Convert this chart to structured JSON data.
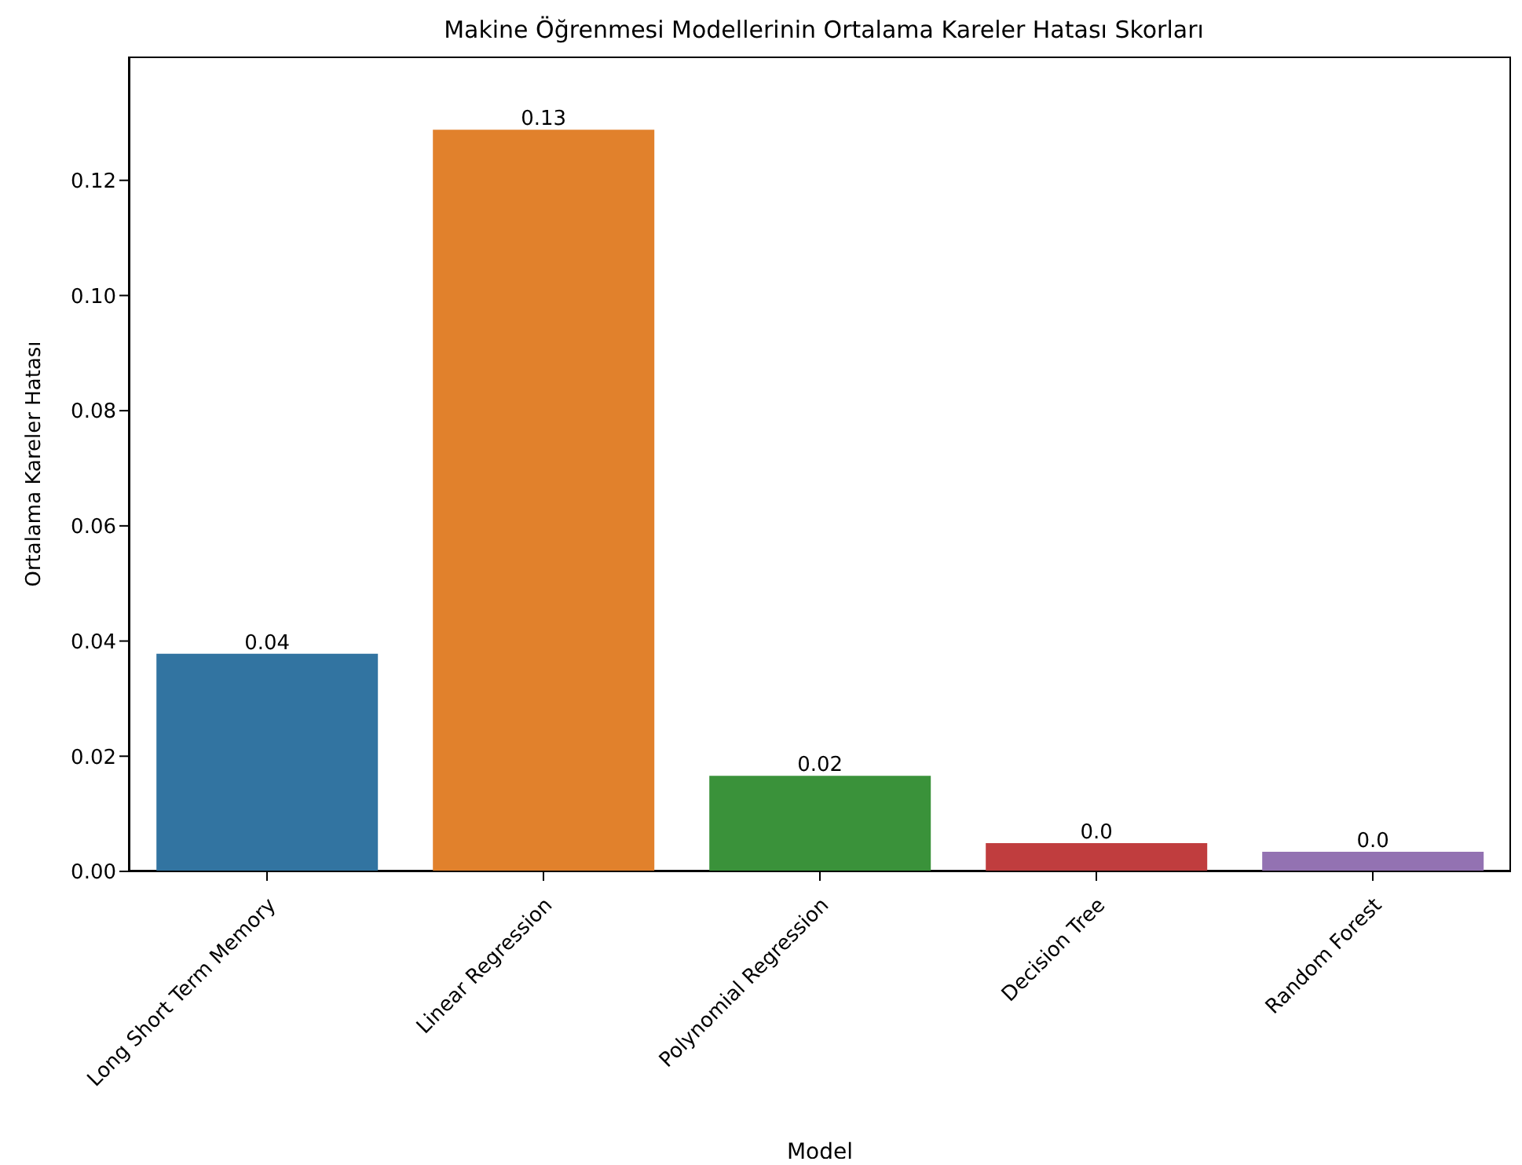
{
  "chart_data": {
    "type": "bar",
    "title": "Makine Öğrenmesi Modellerinin Ortalama Kareler Hatası Skorları",
    "xlabel": "Model",
    "ylabel": "Ortalama Kareler Hatası",
    "categories": [
      "Long Short Term Memory",
      "Linear Regression",
      "Polynomial Regression",
      "Decision Tree",
      "Random Forest"
    ],
    "values": [
      0.0378,
      0.1288,
      0.0166,
      0.0049,
      0.0034
    ],
    "colors": [
      "#3274a1",
      "#e1812c",
      "#3a923a",
      "#c03d3e",
      "#9372b2"
    ],
    "value_labels": [
      "0.04",
      "0.13",
      "0.02",
      "0.0",
      "0.0"
    ],
    "ylim": [
      0,
      0.1415
    ],
    "yticks": [
      {
        "value": 0,
        "label": "0.00"
      },
      0.02,
      0.04,
      0.06,
      0.08,
      {
        "value": 0.1,
        "label": "0.10"
      },
      0.12
    ],
    "grid": false,
    "legend": false
  }
}
